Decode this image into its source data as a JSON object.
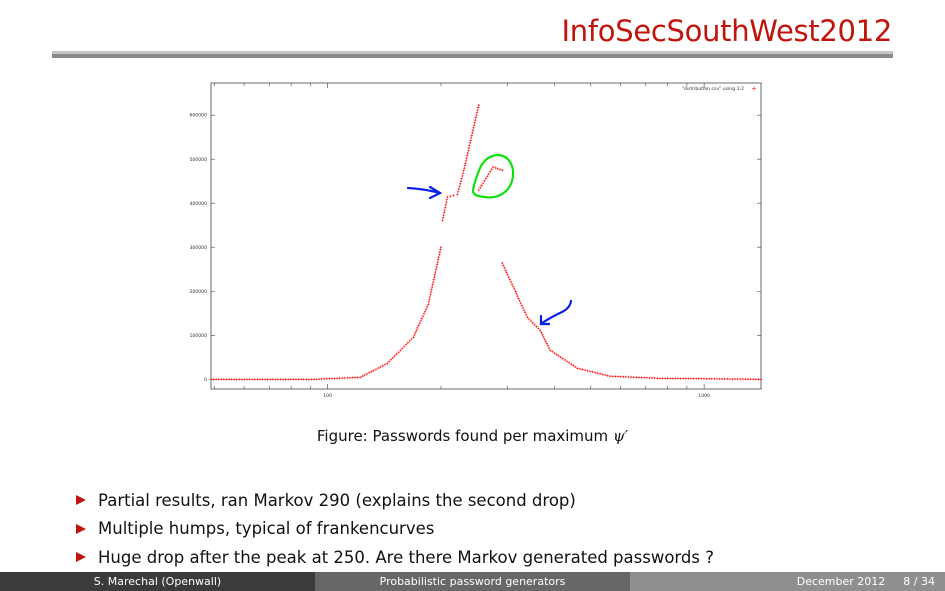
{
  "header": {
    "title": "InfoSecSouthWest2012"
  },
  "figure": {
    "caption_prefix": "Figure: Passwords found per maximum ",
    "caption_symbol": "ψ′"
  },
  "bullets": [
    "Partial results, ran Markov 290 (explains the second drop)",
    "Multiple humps, typical of frankencurves",
    "Huge drop after the peak at 250. Are there Markov generated passwords ?"
  ],
  "footer": {
    "author": "S. Marechal  (Openwall)",
    "talk_title": "Probabilistic password generators",
    "date": "December 2012",
    "page": "8 / 34"
  },
  "colors": {
    "accent": "#c0140c",
    "series": "#ff0000",
    "annotation_arrow": "#0a1ee6",
    "annotation_circle": "#10e010"
  },
  "chart_data": {
    "type": "scatter",
    "title": "",
    "xlabel": "",
    "ylabel": "",
    "x_scale": "log",
    "xlim": [
      49,
      1416
    ],
    "ylim": [
      -22000,
      673000
    ],
    "grid": false,
    "legend": {
      "position": "top-right",
      "entries": [
        "\"distribution.csv\" using 1:2"
      ]
    },
    "x_ticks": [
      {
        "value": 100,
        "label": "100"
      },
      {
        "value": 1000,
        "label": "1000"
      }
    ],
    "y_ticks": [
      {
        "value": 0,
        "label": "0"
      },
      {
        "value": 100000,
        "label": "100000"
      },
      {
        "value": 200000,
        "label": "200000"
      },
      {
        "value": 300000,
        "label": "300000"
      },
      {
        "value": 400000,
        "label": "400000"
      },
      {
        "value": 500000,
        "label": "500000"
      },
      {
        "value": 600000,
        "label": "600000"
      }
    ],
    "series": [
      {
        "name": "\"distribution.csv\" using 1:2",
        "marker": "+",
        "segments": [
          [
            [
              49,
              0
            ],
            [
              92,
              0
            ],
            [
              122,
              4500
            ],
            [
              144,
              36000
            ],
            [
              169,
              95500
            ],
            [
              185,
              170000
            ],
            [
              200,
              300000
            ]
          ],
          [
            [
              202,
              361000
            ],
            [
              208,
              414000
            ],
            [
              216,
              418000
            ],
            [
              221,
              420000
            ],
            [
              229,
              468000
            ],
            [
              252,
              623000
            ]
          ],
          [
            [
              252,
              430000
            ],
            [
              275,
              482000
            ],
            [
              291,
              475000
            ]
          ],
          [
            [
              291,
              264000
            ],
            [
              339,
              141000
            ],
            [
              367,
              111000
            ],
            [
              390,
              66000
            ],
            [
              461,
              25000
            ],
            [
              563,
              7000
            ],
            [
              763,
              2300
            ],
            [
              1416,
              0
            ]
          ]
        ]
      }
    ],
    "annotations": [
      "blue arrow pointing at plateau near 210",
      "green circle around hump near 275",
      "blue arrow pointing at kink near 360"
    ]
  }
}
